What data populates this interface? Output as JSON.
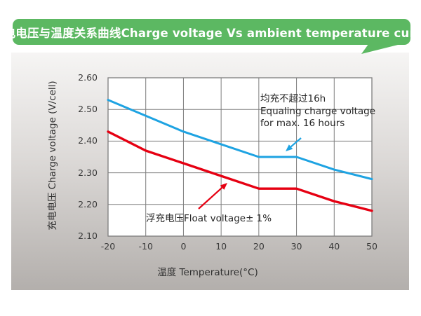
{
  "banner": {
    "title": "充电电压与温度关系曲线Charge voltage Vs ambient temperature curve",
    "color": "#5cb862"
  },
  "chart_data": {
    "type": "line",
    "title": "充电电压与温度关系曲线Charge voltage Vs ambient temperature curve",
    "x": [
      -20,
      -10,
      0,
      10,
      20,
      30,
      40,
      50
    ],
    "x_tick_labels": [
      "-20",
      "-10",
      "0",
      "10",
      "20",
      "30",
      "40",
      "50"
    ],
    "y_ticks": [
      2.6,
      2.5,
      2.4,
      2.3,
      2.2,
      2.1
    ],
    "y_tick_labels": [
      "2.60",
      "2.50",
      "2.40",
      "2.30",
      "2.20",
      "2.10"
    ],
    "xlim": [
      -20,
      50
    ],
    "ylim": [
      2.1,
      2.6
    ],
    "xlabel": "温度 Temperature(°C)",
    "ylabel": "充电电压 Charge voltage (V/cell)",
    "grid": true,
    "legend_position": "none",
    "grid_color": "#7d7d7d",
    "series": [
      {
        "name": "Equaling charge voltage for max. 16 hours",
        "color": "#1ea3e2",
        "values": [
          2.53,
          2.48,
          2.43,
          2.39,
          2.35,
          2.35,
          2.31,
          2.28
        ]
      },
      {
        "name": "Float voltage± 1%",
        "color": "#e60012",
        "values": [
          2.43,
          2.37,
          2.33,
          2.29,
          2.25,
          2.25,
          2.21,
          2.18
        ]
      }
    ],
    "annotations": [
      {
        "target": "equalizing-curve",
        "lines": [
          "均充不超过16h",
          "Equaling charge voltage",
          "for max. 16 hours"
        ]
      },
      {
        "target": "float-curve",
        "lines": [
          "浮充电压Float voltage± 1%"
        ]
      }
    ]
  }
}
